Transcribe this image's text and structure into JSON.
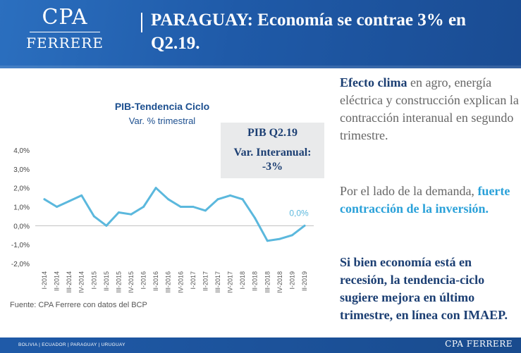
{
  "header": {
    "logo_top": "CPA",
    "logo_bottom": "FERRERE",
    "title": "PARAGUAY: Economía se contrae 3% en Q2.19."
  },
  "chart_box": {
    "title": "PIB-Tendencia Ciclo",
    "subtitle": "Var. % trimestral",
    "source": "Fuente: CPA Ferrere con datos del BCP"
  },
  "kpi": {
    "title": "PIB Q2.19",
    "subtitle": "Var. Interanual:",
    "value": "-3%"
  },
  "chart_data": {
    "type": "line",
    "title": "PIB-Tendencia Ciclo",
    "subtitle": "Var. % trimestral",
    "x": [
      "I-2014",
      "II-2014",
      "III-2014",
      "IV-2014",
      "I-2015",
      "II-2015",
      "III-2015",
      "IV-2015",
      "I-2016",
      "II-2016",
      "III-2016",
      "IV-2016",
      "I-2017",
      "II-2017",
      "III-2017",
      "IV-2017",
      "I-2018",
      "II-2018",
      "III-2018",
      "IV-2018",
      "I-2019",
      "II-2019"
    ],
    "series": [
      {
        "values": [
          1.4,
          1.0,
          1.3,
          1.6,
          0.5,
          0.0,
          0.7,
          0.6,
          1.0,
          2.0,
          1.4,
          1.0,
          1.0,
          0.8,
          1.4,
          1.6,
          1.4,
          0.4,
          -0.8,
          -0.7,
          -0.5,
          0.0
        ]
      }
    ],
    "ylim": [
      -2.0,
      4.0
    ],
    "yticks": [
      "4,0%",
      "3,0%",
      "2,0%",
      "1,0%",
      "0,0%",
      "-1,0%",
      "-2,0%"
    ],
    "annotation": "0,0%",
    "line_color": "#5bb8dd",
    "grid": false
  },
  "commentary": {
    "p1_bold": "Efecto clima",
    "p1_rest": " en agro, energía eléctrica y construcción explican la contracción interanual en segundo trimestre.",
    "p2_start": "Por el lado de la demanda, ",
    "p2_bold": "fuerte contracción de la inversión.",
    "p3": "Si bien economía está en recesión, la tendencia-ciclo sugiere mejora en último trimestre, en línea con IMAEP."
  },
  "footer": {
    "countries": "BOLIVIA | ECUADOR | PARAGUAY | URUGUAY",
    "brand": "CPA FERRERE"
  },
  "colors": {
    "header_blue": "#1f5aa8",
    "dark_navy": "#1c3f73",
    "light_blue": "#2aa1d9",
    "line": "#5bb8dd"
  }
}
